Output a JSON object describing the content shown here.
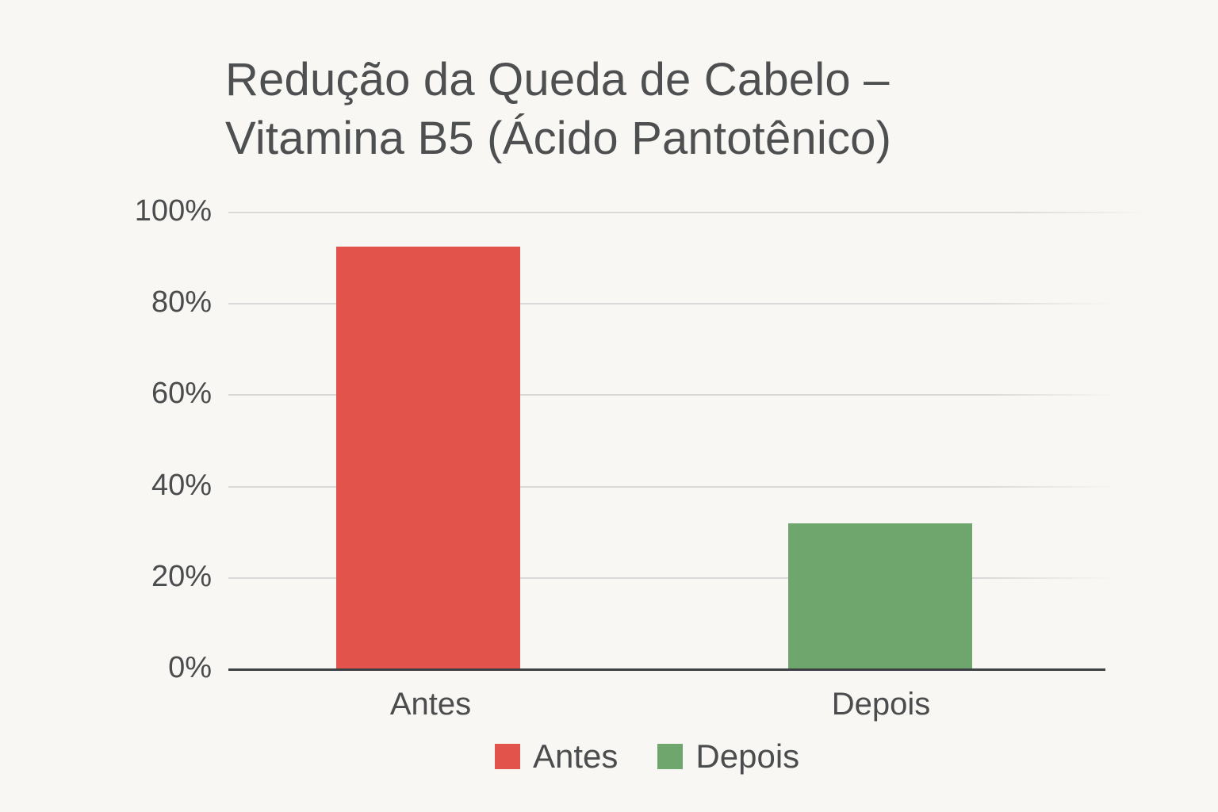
{
  "chart_data": {
    "type": "bar",
    "title": "Redução da Queda de Cabelo – Vitamina B5 (Ácido Pantotênico)",
    "title_lines": [
      "Redução da Queda de Cabelo –",
      "Vitamina B5 (Ácido Pantotênico)"
    ],
    "categories": [
      "Antes",
      "Depois"
    ],
    "values": [
      92.5,
      32
    ],
    "unit": "%",
    "colors": [
      "#e2544b",
      "#6fa66d"
    ],
    "xlabel": "",
    "ylabel": "",
    "ylim": [
      0,
      100
    ],
    "yticks": [
      "0%",
      "20%",
      "40%",
      "60%",
      "80%",
      "100%"
    ],
    "grid": true,
    "legend": {
      "position": "bottom",
      "entries": [
        {
          "label": "Antes",
          "color": "#e2544b"
        },
        {
          "label": "Depois",
          "color": "#6fa66d"
        }
      ]
    }
  }
}
